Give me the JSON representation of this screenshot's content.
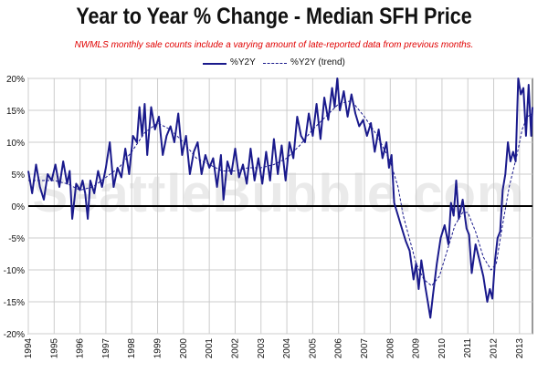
{
  "title": "Year to Year % Change - Median SFH Price",
  "subtitle": "NWMLS monthly sale counts include a varying amount of late-reported  data from previous months.",
  "watermark": "SeattleBubble.com",
  "chart_data": {
    "type": "line",
    "title": "Year to Year % Change - Median SFH Price",
    "subtitle": "NWMLS monthly sale counts include a varying amount of late-reported  data from previous months.",
    "xlabel": "",
    "ylabel": "",
    "ylim": [
      -20,
      20
    ],
    "xlim": [
      1994,
      2013.5
    ],
    "grid": true,
    "legend_position": "top-center",
    "y_ticks": [
      20,
      15,
      10,
      5,
      0,
      -5,
      -10,
      -15,
      -20
    ],
    "y_tick_labels": [
      "20%",
      "15%",
      "10%",
      "5%",
      "0%",
      "-5%",
      "-10%",
      "-15%",
      "-20%"
    ],
    "x_ticks": [
      1994,
      1995,
      1996,
      1997,
      1998,
      1999,
      2000,
      2001,
      2002,
      2003,
      2004,
      2005,
      2006,
      2007,
      2008,
      2009,
      2010,
      2011,
      2012,
      2013
    ],
    "x_tick_labels": [
      "1994",
      "1995",
      "1996",
      "1997",
      "1998",
      "1999",
      "2000",
      "2001",
      "2002",
      "2003",
      "2004",
      "2005",
      "2006",
      "2007",
      "2008",
      "2009",
      "2010",
      "2011",
      "2012",
      "2013"
    ],
    "zero_line": true,
    "series": [
      {
        "name": "%Y2Y",
        "style": "solid",
        "color": "#1a1a8c",
        "points": [
          [
            1994.0,
            5.5
          ],
          [
            1994.15,
            2.0
          ],
          [
            1994.3,
            6.5
          ],
          [
            1994.45,
            3.0
          ],
          [
            1994.6,
            1.0
          ],
          [
            1994.75,
            5.0
          ],
          [
            1994.9,
            4.0
          ],
          [
            1995.05,
            6.5
          ],
          [
            1995.2,
            3.0
          ],
          [
            1995.35,
            7.0
          ],
          [
            1995.5,
            3.5
          ],
          [
            1995.6,
            5.5
          ],
          [
            1995.7,
            -2.0
          ],
          [
            1995.85,
            3.5
          ],
          [
            1996.0,
            2.5
          ],
          [
            1996.1,
            4.0
          ],
          [
            1996.2,
            2.0
          ],
          [
            1996.3,
            -2.0
          ],
          [
            1996.4,
            4.0
          ],
          [
            1996.55,
            2.0
          ],
          [
            1996.7,
            5.5
          ],
          [
            1996.85,
            3.0
          ],
          [
            1997.0,
            6.0
          ],
          [
            1997.15,
            10.0
          ],
          [
            1997.3,
            3.0
          ],
          [
            1997.45,
            6.0
          ],
          [
            1997.6,
            4.5
          ],
          [
            1997.75,
            9.0
          ],
          [
            1997.9,
            5.0
          ],
          [
            1998.05,
            11.0
          ],
          [
            1998.2,
            10.0
          ],
          [
            1998.3,
            15.5
          ],
          [
            1998.4,
            11.0
          ],
          [
            1998.5,
            16.0
          ],
          [
            1998.6,
            8.0
          ],
          [
            1998.75,
            15.5
          ],
          [
            1998.9,
            12.0
          ],
          [
            1999.05,
            14.0
          ],
          [
            1999.2,
            8.0
          ],
          [
            1999.35,
            11.0
          ],
          [
            1999.5,
            12.5
          ],
          [
            1999.65,
            10.0
          ],
          [
            1999.8,
            14.5
          ],
          [
            1999.95,
            8.0
          ],
          [
            2000.1,
            11.0
          ],
          [
            2000.25,
            5.0
          ],
          [
            2000.4,
            8.5
          ],
          [
            2000.55,
            10.0
          ],
          [
            2000.7,
            5.0
          ],
          [
            2000.85,
            8.0
          ],
          [
            2001.0,
            6.0
          ],
          [
            2001.15,
            7.5
          ],
          [
            2001.3,
            3.0
          ],
          [
            2001.45,
            8.0
          ],
          [
            2001.55,
            1.0
          ],
          [
            2001.7,
            7.0
          ],
          [
            2001.85,
            5.0
          ],
          [
            2002.0,
            9.0
          ],
          [
            2002.15,
            4.5
          ],
          [
            2002.3,
            6.5
          ],
          [
            2002.45,
            3.5
          ],
          [
            2002.6,
            9.0
          ],
          [
            2002.75,
            4.0
          ],
          [
            2002.9,
            7.5
          ],
          [
            2003.05,
            3.5
          ],
          [
            2003.2,
            8.5
          ],
          [
            2003.35,
            4.0
          ],
          [
            2003.5,
            10.5
          ],
          [
            2003.65,
            5.0
          ],
          [
            2003.8,
            9.5
          ],
          [
            2003.95,
            4.0
          ],
          [
            2004.1,
            10.0
          ],
          [
            2004.25,
            7.5
          ],
          [
            2004.4,
            14.0
          ],
          [
            2004.55,
            11.0
          ],
          [
            2004.7,
            10.0
          ],
          [
            2004.85,
            14.5
          ],
          [
            2005.0,
            11.0
          ],
          [
            2005.15,
            16.0
          ],
          [
            2005.3,
            10.5
          ],
          [
            2005.45,
            17.0
          ],
          [
            2005.6,
            13.5
          ],
          [
            2005.75,
            18.5
          ],
          [
            2005.85,
            15.5
          ],
          [
            2005.95,
            20.0
          ],
          [
            2006.05,
            15.0
          ],
          [
            2006.2,
            18.0
          ],
          [
            2006.35,
            14.0
          ],
          [
            2006.5,
            17.5
          ],
          [
            2006.65,
            14.5
          ],
          [
            2006.8,
            12.5
          ],
          [
            2006.95,
            13.5
          ],
          [
            2007.1,
            11.0
          ],
          [
            2007.25,
            13.0
          ],
          [
            2007.4,
            8.5
          ],
          [
            2007.55,
            12.0
          ],
          [
            2007.7,
            7.5
          ],
          [
            2007.85,
            10.0
          ],
          [
            2007.95,
            6.0
          ],
          [
            2008.05,
            8.0
          ],
          [
            2008.15,
            0.5
          ],
          [
            2008.3,
            -1.5
          ],
          [
            2008.45,
            -3.5
          ],
          [
            2008.6,
            -5.5
          ],
          [
            2008.75,
            -7.0
          ],
          [
            2008.9,
            -11.5
          ],
          [
            2009.0,
            -9.0
          ],
          [
            2009.1,
            -13.0
          ],
          [
            2009.2,
            -8.5
          ],
          [
            2009.35,
            -12.5
          ],
          [
            2009.45,
            -15.0
          ],
          [
            2009.55,
            -17.5
          ],
          [
            2009.65,
            -14.0
          ],
          [
            2009.8,
            -9.0
          ],
          [
            2009.95,
            -5.0
          ],
          [
            2010.1,
            -3.0
          ],
          [
            2010.25,
            -6.0
          ],
          [
            2010.35,
            0.5
          ],
          [
            2010.45,
            -1.5
          ],
          [
            2010.55,
            4.0
          ],
          [
            2010.65,
            -2.0
          ],
          [
            2010.8,
            1.0
          ],
          [
            2010.95,
            -3.5
          ],
          [
            2011.05,
            -4.5
          ],
          [
            2011.15,
            -10.5
          ],
          [
            2011.3,
            -6.0
          ],
          [
            2011.45,
            -8.5
          ],
          [
            2011.6,
            -11.0
          ],
          [
            2011.75,
            -15.0
          ],
          [
            2011.85,
            -13.0
          ],
          [
            2011.95,
            -14.5
          ],
          [
            2012.05,
            -8.5
          ],
          [
            2012.15,
            -5.0
          ],
          [
            2012.25,
            -4.0
          ],
          [
            2012.35,
            2.5
          ],
          [
            2012.45,
            5.0
          ],
          [
            2012.55,
            10.0
          ],
          [
            2012.65,
            7.0
          ],
          [
            2012.75,
            8.5
          ],
          [
            2012.85,
            7.0
          ],
          [
            2012.95,
            20.0
          ],
          [
            2013.05,
            17.5
          ],
          [
            2013.15,
            18.5
          ],
          [
            2013.25,
            11.0
          ],
          [
            2013.35,
            19.0
          ],
          [
            2013.45,
            11.0
          ],
          [
            2013.5,
            15.5
          ]
        ]
      },
      {
        "name": "%Y2Y (trend)",
        "style": "dashed",
        "color": "#1a1a8c",
        "points": [
          [
            1994.0,
            4.0
          ],
          [
            1994.5,
            4.0
          ],
          [
            1995.0,
            4.0
          ],
          [
            1995.5,
            3.5
          ],
          [
            1996.0,
            2.5
          ],
          [
            1996.5,
            3.0
          ],
          [
            1997.0,
            4.5
          ],
          [
            1997.5,
            6.0
          ],
          [
            1998.0,
            8.5
          ],
          [
            1998.5,
            11.5
          ],
          [
            1999.0,
            13.0
          ],
          [
            1999.5,
            12.0
          ],
          [
            2000.0,
            10.0
          ],
          [
            2000.5,
            7.5
          ],
          [
            2001.0,
            6.5
          ],
          [
            2001.5,
            5.5
          ],
          [
            2002.0,
            5.5
          ],
          [
            2002.5,
            6.0
          ],
          [
            2003.0,
            6.0
          ],
          [
            2003.5,
            6.5
          ],
          [
            2004.0,
            7.5
          ],
          [
            2004.5,
            9.5
          ],
          [
            2005.0,
            12.0
          ],
          [
            2005.5,
            14.0
          ],
          [
            2006.0,
            16.0
          ],
          [
            2006.5,
            16.5
          ],
          [
            2007.0,
            14.0
          ],
          [
            2007.5,
            11.0
          ],
          [
            2008.0,
            7.0
          ],
          [
            2008.3,
            3.0
          ],
          [
            2008.5,
            -1.5
          ],
          [
            2008.8,
            -6.0
          ],
          [
            2009.0,
            -9.0
          ],
          [
            2009.3,
            -11.5
          ],
          [
            2009.6,
            -12.5
          ],
          [
            2009.9,
            -11.0
          ],
          [
            2010.2,
            -7.0
          ],
          [
            2010.5,
            -3.0
          ],
          [
            2010.8,
            -1.0
          ],
          [
            2011.0,
            -1.0
          ],
          [
            2011.3,
            -4.0
          ],
          [
            2011.6,
            -8.0
          ],
          [
            2011.9,
            -10.0
          ],
          [
            2012.1,
            -9.0
          ],
          [
            2012.3,
            -4.0
          ],
          [
            2012.6,
            3.0
          ],
          [
            2012.9,
            8.0
          ],
          [
            2013.1,
            12.0
          ],
          [
            2013.3,
            14.0
          ],
          [
            2013.5,
            14.5
          ]
        ]
      }
    ]
  }
}
